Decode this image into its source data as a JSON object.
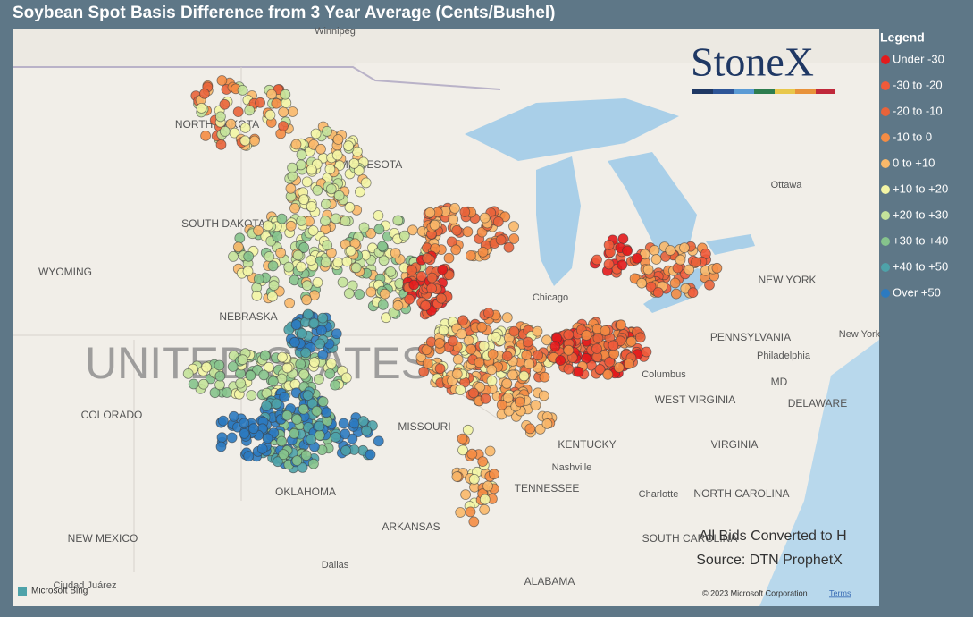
{
  "header": {
    "title": "Soybean Spot Basis Difference from 3 Year Average (Cents/Bushel)"
  },
  "legend": {
    "title": "Legend",
    "items": [
      {
        "label": "Under -30",
        "color": "#e31a1c"
      },
      {
        "label": "-30 to -20",
        "color": "#f05a3a"
      },
      {
        "label": "-20 to -10",
        "color": "#e9633a"
      },
      {
        "label": "-10 to 0",
        "color": "#f48c44"
      },
      {
        "label": "0 to +10",
        "color": "#f9b86a"
      },
      {
        "label": "+10 to +20",
        "color": "#f3f5a5"
      },
      {
        "label": "+20 to +30",
        "color": "#c4e29a"
      },
      {
        "label": "+30 to +40",
        "color": "#86c38c"
      },
      {
        "label": "+40 to +50",
        "color": "#4ea2a9"
      },
      {
        "label": "Over +50",
        "color": "#2c7ac0"
      }
    ]
  },
  "map": {
    "country": "UNITED STATES",
    "labels": [
      "WYOMING",
      "NORTH DAKOTA",
      "SOUTH DAKOTA",
      "MINNESOTA",
      "NEBRASKA",
      "COLORADO",
      "MISSOURI",
      "KENTUCKY",
      "TENNESSEE",
      "ARKANSAS",
      "OKLAHOMA",
      "NEW MEXICO",
      "ALABAMA",
      "PENNSYLVANIA",
      "NEW YORK",
      "WEST VIRGINIA",
      "VIRGINIA",
      "NORTH CAROLINA",
      "SOUTH CAROLINA",
      "DELAWARE",
      "MD",
      "Winnipeg",
      "Ottawa",
      "Chicago",
      "Columbus",
      "Nashville",
      "Charlotte",
      "Philadelphia",
      "Dallas",
      "Ciudad Juárez",
      "New York"
    ]
  },
  "logo": "StoneX",
  "notes": [
    "All Bids Converted to H",
    "Source: DTN ProphetX"
  ],
  "attribution": {
    "bing": "Microsoft Bing",
    "copyright": "© 2023 Microsoft Corporation",
    "terms": "Terms"
  }
}
